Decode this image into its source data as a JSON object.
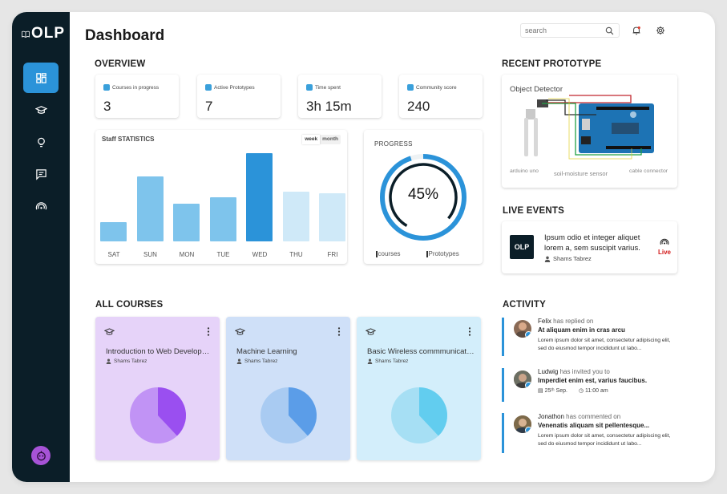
{
  "app": {
    "logo_text": "OLP",
    "page_title": "Dashboard"
  },
  "header": {
    "search_placeholder": "search"
  },
  "sidebar": {
    "items": [
      {
        "icon": "dashboard-icon",
        "active": true
      },
      {
        "icon": "graduation-cap-icon",
        "active": false
      },
      {
        "icon": "lightbulb-icon",
        "active": false
      },
      {
        "icon": "chat-icon",
        "active": false
      },
      {
        "icon": "broadcast-icon",
        "active": false
      }
    ]
  },
  "overview": {
    "title": "OVERVIEW",
    "stats": [
      {
        "label": "Courses in progress",
        "value": "3"
      },
      {
        "label": "Active Prototypes",
        "value": "7"
      },
      {
        "label": "Time spent",
        "value": "3h 15m"
      },
      {
        "label": "Community score",
        "value": "240"
      }
    ]
  },
  "statistics": {
    "title": "Staff STATISTICS",
    "toggle": [
      "week",
      "month"
    ],
    "chart_data": {
      "type": "bar",
      "categories": [
        "SAT",
        "SUN",
        "MON",
        "TUE",
        "WED",
        "THU",
        "FRI"
      ],
      "values": [
        22,
        74,
        43,
        50,
        100,
        56,
        55
      ],
      "colors": [
        "#7ec4ec",
        "#7ec4ec",
        "#7ec4ec",
        "#7ec4ec",
        "#2b93d9",
        "#cfe9f8",
        "#cfe9f8"
      ],
      "ylim": [
        0,
        100
      ],
      "grid": false
    }
  },
  "progress": {
    "title": "PROGRESS",
    "value_text": "45%",
    "fraction": 0.45,
    "legend": [
      "courses",
      "Prototypes"
    ]
  },
  "recent_prototype": {
    "title": "RECENT PROTOTYPE",
    "name": "Object Detector",
    "labels": [
      "arduino uno",
      "soil-moisture sensor",
      "cable connector"
    ]
  },
  "live_events": {
    "title": "LIVE EVENTS",
    "logo_text": "OLP",
    "text": "Ipsum odio et integer aliquet lorem a, sem suscipit varius.",
    "author": "Shams Tabrez",
    "badge": "Live"
  },
  "courses": {
    "title": "ALL COURSES",
    "items": [
      {
        "title": "Introduction to Web Development",
        "author": "Shams Tabrez",
        "bg": "#e6d3f9",
        "pie_light": "#c193f5",
        "pie_dark": "#9a4ff0",
        "progress": 0.38
      },
      {
        "title": "Machine Learning",
        "author": "Shams Tabrez",
        "bg": "#cfe0f8",
        "pie_light": "#a9cbf2",
        "pie_dark": "#5b9de8",
        "progress": 0.38
      },
      {
        "title": "Basic Wireless commmunication",
        "author": "Shams Tabrez",
        "bg": "#d3eefb",
        "pie_light": "#a6dff4",
        "pie_dark": "#62cdef",
        "progress": 0.38
      }
    ]
  },
  "activity": {
    "title": "ACTIVITY",
    "items": [
      {
        "name": "Felix",
        "action": "has replied on",
        "subject": "At aliquam enim in cras arcu",
        "body": "Lorem ipsum dolor sit amet, consectetur adipiscing elit, sed do eiusmod tempor incididunt ut labo..."
      },
      {
        "name": "Ludwig",
        "action": "has invited you to",
        "subject": "Imperdiet enim est, varius faucibus.",
        "date": "25ᵗʰ Sep.",
        "time": "11:00 am"
      },
      {
        "name": "Jonathon",
        "action": "has commented on",
        "subject": "Venenatis aliquam sit pellentesque...",
        "body": "Lorem ipsum dolor sit amet, consectetur adipiscing elit, sed do eiusmod tempor incididunt ut labo..."
      }
    ]
  }
}
